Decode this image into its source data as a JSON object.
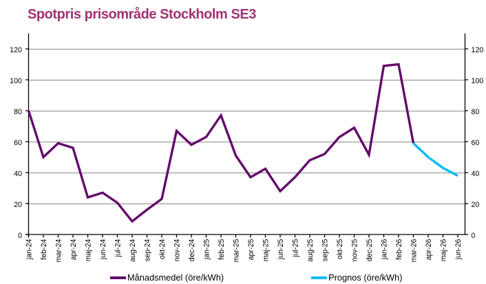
{
  "chart": {
    "title": "Spotpris prisområde Stockholm SE3",
    "title_color": "#A03273"
  },
  "legend": {
    "entries": [
      {
        "label": "Månadsmedel (öre/kWh)",
        "color": "#63096B"
      },
      {
        "label": "Prognos (öre/kWh)",
        "color": "#00BDF2"
      }
    ]
  },
  "chart_data": {
    "type": "line",
    "title": "Spotpris prisområde Stockholm SE3",
    "xlabel": "",
    "ylabel": "öre/kWh",
    "ylim": [
      0,
      130
    ],
    "ytick_interval": 20,
    "yticks_labeled": [
      0,
      20,
      40,
      60,
      80,
      100,
      120
    ],
    "grid": "horizontal",
    "legend_position": "bottom",
    "dual_y_axis": true,
    "categories": [
      "jan-24",
      "feb-24",
      "mar-24",
      "apr-24",
      "maj-24",
      "jun-24",
      "jul-24",
      "aug-24",
      "sep-24",
      "okt-24",
      "nov-24",
      "dec-24",
      "jan-25",
      "feb-25",
      "mar-25",
      "apr-25",
      "maj-25",
      "jun-25",
      "jul-25",
      "aug-25",
      "sep-25",
      "okt-25",
      "nov-25",
      "dec-25",
      "jan-26",
      "feb-26",
      "mar-26",
      "apr-26",
      "maj-26",
      "jun-26"
    ],
    "series": [
      {
        "name": "Månadsmedel (öre/kWh)",
        "color": "#63096B",
        "values": [
          80,
          50,
          59,
          56,
          24,
          27,
          20.5,
          8.5,
          16,
          23,
          67,
          58,
          63,
          77,
          51,
          37,
          42.5,
          28,
          37,
          48,
          52,
          63,
          69,
          51.5,
          109,
          110,
          59,
          null,
          null,
          null
        ]
      },
      {
        "name": "Prognos (öre/kWh)",
        "color": "#00BDF2",
        "values": [
          null,
          null,
          null,
          null,
          null,
          null,
          null,
          null,
          null,
          null,
          null,
          null,
          null,
          null,
          null,
          null,
          null,
          null,
          null,
          null,
          null,
          null,
          null,
          null,
          null,
          null,
          59,
          50,
          43,
          38
        ]
      }
    ]
  }
}
